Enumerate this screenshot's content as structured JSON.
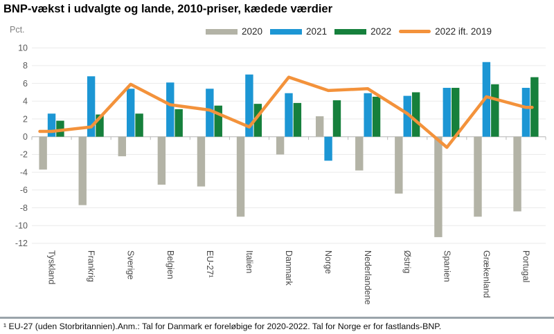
{
  "title": "BNP-vækst i udvalgte og lande, 2010-priser, kædede værdier",
  "y_axis_unit": "Pct.",
  "footnote": "¹ EU-27 (uden Storbritannien).Anm.: Tal for Danmark er foreløbige for 2020-2022. Tal for Norge er for fastlands-BNP.",
  "chart_data": {
    "type": "bar",
    "title": "BNP-vækst i udvalgte og lande, 2010-priser, kædede værdier",
    "xlabel": "",
    "ylabel": "Pct.",
    "ylim": [
      -12,
      10
    ],
    "ytick_step": 2,
    "grid": true,
    "legend_position": "top",
    "categories": [
      "Tyskland",
      "Frankrig",
      "Sverige",
      "Belgien",
      "EU-27¹",
      "Italien",
      "Danmark",
      "Norge",
      "Nederlandene",
      "Østrig",
      "Spanien",
      "Grækenland",
      "Portugal"
    ],
    "series": [
      {
        "name": "2020",
        "color": "#B3B3A6",
        "values": [
          -3.7,
          -7.7,
          -2.2,
          -5.4,
          -5.6,
          -9.0,
          -2.0,
          2.3,
          -3.8,
          -6.4,
          -11.3,
          -9.0,
          -8.4
        ]
      },
      {
        "name": "2021",
        "color": "#1C96D4",
        "values": [
          2.6,
          6.8,
          5.4,
          6.1,
          5.4,
          7.0,
          4.9,
          -2.7,
          4.9,
          4.6,
          5.5,
          8.4,
          5.5
        ]
      },
      {
        "name": "2022",
        "color": "#16803C",
        "values": [
          1.8,
          2.5,
          2.6,
          3.1,
          3.5,
          3.7,
          3.8,
          4.1,
          4.5,
          5.0,
          5.5,
          5.9,
          6.7
        ]
      }
    ],
    "line": {
      "name": "2022 ift. 2019",
      "color": "#F3923B",
      "values": [
        0.6,
        1.1,
        5.9,
        3.6,
        3.0,
        1.1,
        6.7,
        5.2,
        5.4,
        2.6,
        -1.2,
        4.5,
        3.3
      ]
    },
    "colors": {
      "gridline": "#EAEAEA",
      "zero_line": "#C9C9C9",
      "tick": "#B8B8B8",
      "axis_text": "#595959",
      "category_text": "#4A4A4A"
    }
  }
}
